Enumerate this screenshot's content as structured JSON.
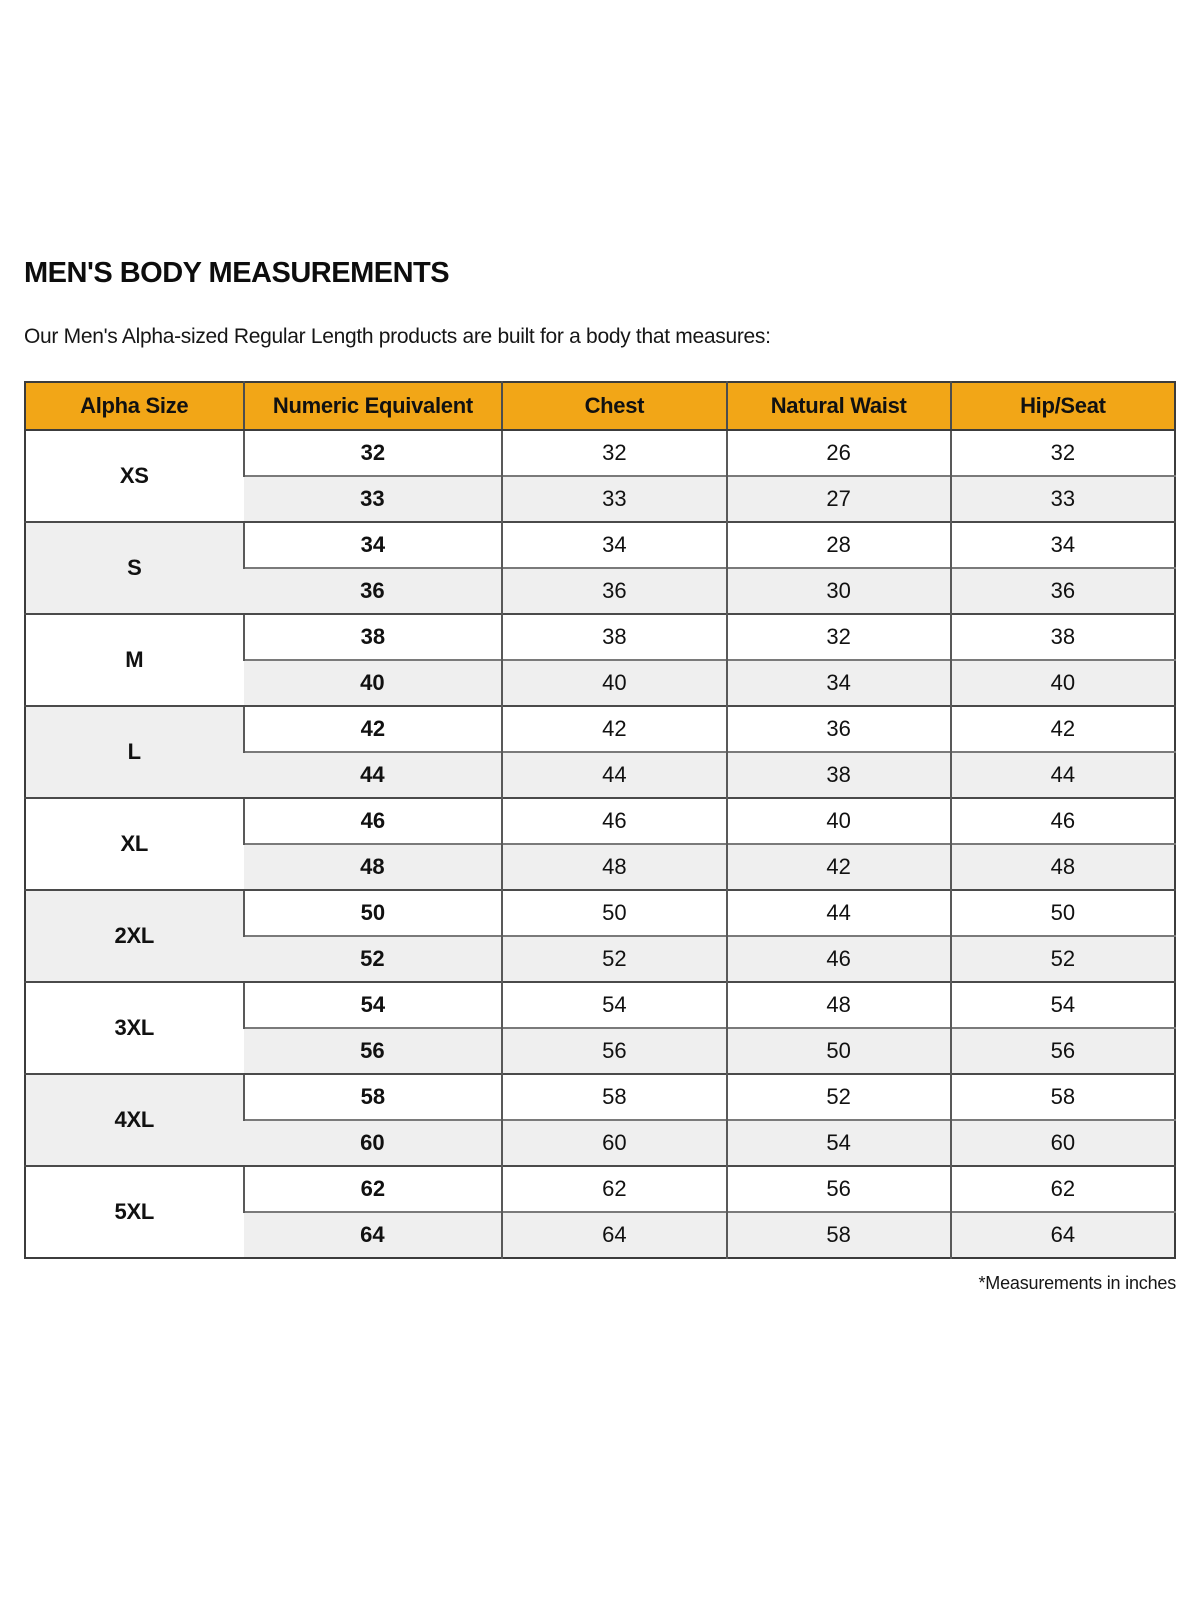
{
  "page": {
    "title": "MEN'S BODY MEASUREMENTS",
    "subtitle": "Our Men's Alpha-sized Regular Length products are built for a body that measures:",
    "footnote": "*Measurements in inches"
  },
  "colors": {
    "header_bg": "#F2A617",
    "shaded_row_bg": "#EFEFEF",
    "border_dark": "#3C3C3C",
    "border_mid": "#595959"
  },
  "table": {
    "headers": [
      "Alpha Size",
      "Numeric Equivalent",
      "Chest",
      "Natural Waist",
      "Hip/Seat"
    ],
    "groups": [
      {
        "alpha": "XS",
        "rows": [
          [
            "32",
            "32",
            "26",
            "32"
          ],
          [
            "33",
            "33",
            "27",
            "33"
          ]
        ]
      },
      {
        "alpha": "S",
        "rows": [
          [
            "34",
            "34",
            "28",
            "34"
          ],
          [
            "36",
            "36",
            "30",
            "36"
          ]
        ]
      },
      {
        "alpha": "M",
        "rows": [
          [
            "38",
            "38",
            "32",
            "38"
          ],
          [
            "40",
            "40",
            "34",
            "40"
          ]
        ]
      },
      {
        "alpha": "L",
        "rows": [
          [
            "42",
            "42",
            "36",
            "42"
          ],
          [
            "44",
            "44",
            "38",
            "44"
          ]
        ]
      },
      {
        "alpha": "XL",
        "rows": [
          [
            "46",
            "46",
            "40",
            "46"
          ],
          [
            "48",
            "48",
            "42",
            "48"
          ]
        ]
      },
      {
        "alpha": "2XL",
        "rows": [
          [
            "50",
            "50",
            "44",
            "50"
          ],
          [
            "52",
            "52",
            "46",
            "52"
          ]
        ]
      },
      {
        "alpha": "3XL",
        "rows": [
          [
            "54",
            "54",
            "48",
            "54"
          ],
          [
            "56",
            "56",
            "50",
            "56"
          ]
        ]
      },
      {
        "alpha": "4XL",
        "rows": [
          [
            "58",
            "58",
            "52",
            "58"
          ],
          [
            "60",
            "60",
            "54",
            "60"
          ]
        ]
      },
      {
        "alpha": "5XL",
        "rows": [
          [
            "62",
            "62",
            "56",
            "62"
          ],
          [
            "64",
            "64",
            "58",
            "64"
          ]
        ]
      }
    ]
  }
}
